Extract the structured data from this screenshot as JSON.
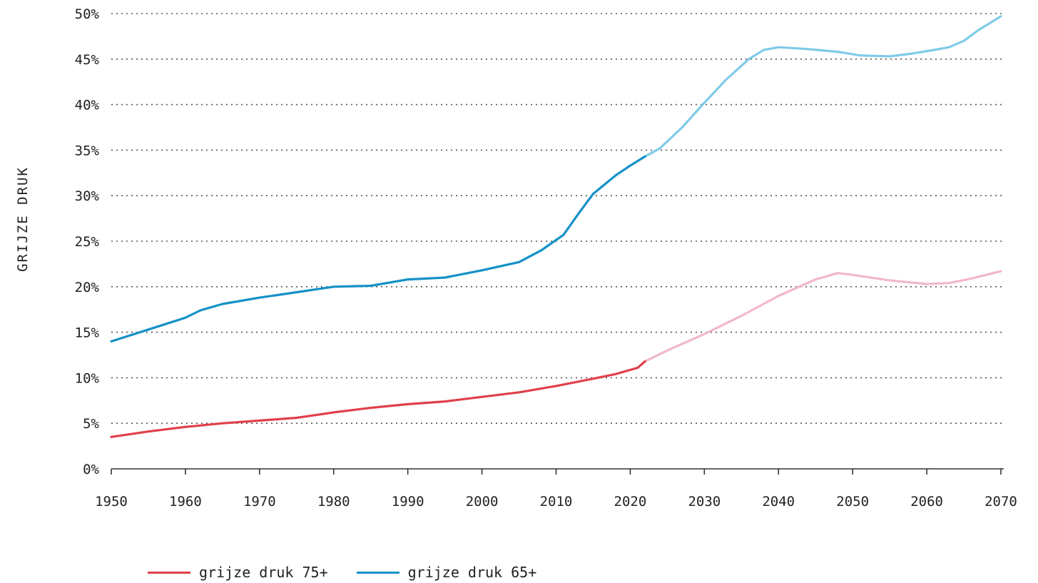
{
  "chart_data": {
    "type": "line",
    "ylabel": "GRIJZE DRUK",
    "xlim": [
      1950,
      2070
    ],
    "ylim": [
      0,
      50
    ],
    "grid": true,
    "legend_position": "bottom-left",
    "x_ticks": [
      1950,
      1960,
      1970,
      1980,
      1990,
      2000,
      2010,
      2020,
      2030,
      2040,
      2050,
      2060,
      2070
    ],
    "x_tick_labels": [
      "1950",
      "1960",
      "1970",
      "1980",
      "1990",
      "2000",
      "2010",
      "2020",
      "2030",
      "2040",
      "2050",
      "2060",
      "2070"
    ],
    "y_ticks": [
      0,
      5,
      10,
      15,
      20,
      25,
      30,
      35,
      40,
      45,
      50
    ],
    "y_tick_labels": [
      "0%",
      "5%",
      "10%",
      "15%",
      "20%",
      "25%",
      "30%",
      "35%",
      "40%",
      "45%",
      "50%"
    ],
    "series": [
      {
        "name": "grijze druk 75+",
        "color": "#e0404a",
        "projection_color": "#f2b8c6",
        "projection_start": 2022,
        "points": [
          [
            1950,
            3.5
          ],
          [
            1955,
            4.1
          ],
          [
            1960,
            4.6
          ],
          [
            1965,
            5.0
          ],
          [
            1970,
            5.3
          ],
          [
            1975,
            5.6
          ],
          [
            1980,
            6.2
          ],
          [
            1985,
            6.7
          ],
          [
            1990,
            7.1
          ],
          [
            1995,
            7.4
          ],
          [
            2000,
            7.9
          ],
          [
            2005,
            8.4
          ],
          [
            2010,
            9.1
          ],
          [
            2015,
            9.9
          ],
          [
            2018,
            10.4
          ],
          [
            2021,
            11.1
          ],
          [
            2022,
            11.8
          ],
          [
            2025,
            13.0
          ],
          [
            2030,
            14.8
          ],
          [
            2035,
            16.8
          ],
          [
            2040,
            19.0
          ],
          [
            2045,
            20.8
          ],
          [
            2048,
            21.5
          ],
          [
            2050,
            21.3
          ],
          [
            2055,
            20.7
          ],
          [
            2060,
            20.3
          ],
          [
            2063,
            20.4
          ],
          [
            2066,
            20.9
          ],
          [
            2070,
            21.7
          ]
        ]
      },
      {
        "name": "grijze druk 65+",
        "color": "#1591c7",
        "projection_color": "#7fcbe8",
        "projection_start": 2022,
        "points": [
          [
            1950,
            14.0
          ],
          [
            1955,
            15.3
          ],
          [
            1960,
            16.6
          ],
          [
            1962,
            17.4
          ],
          [
            1965,
            18.1
          ],
          [
            1970,
            18.8
          ],
          [
            1975,
            19.4
          ],
          [
            1980,
            20.0
          ],
          [
            1985,
            20.1
          ],
          [
            1990,
            20.8
          ],
          [
            1995,
            21.0
          ],
          [
            2000,
            21.8
          ],
          [
            2005,
            22.7
          ],
          [
            2008,
            24.0
          ],
          [
            2011,
            25.7
          ],
          [
            2013,
            28.0
          ],
          [
            2015,
            30.2
          ],
          [
            2018,
            32.2
          ],
          [
            2020,
            33.3
          ],
          [
            2022,
            34.3
          ],
          [
            2024,
            35.2
          ],
          [
            2027,
            37.5
          ],
          [
            2030,
            40.2
          ],
          [
            2033,
            42.8
          ],
          [
            2036,
            45.0
          ],
          [
            2038,
            46.0
          ],
          [
            2040,
            46.3
          ],
          [
            2044,
            46.1
          ],
          [
            2048,
            45.8
          ],
          [
            2051,
            45.4
          ],
          [
            2055,
            45.3
          ],
          [
            2058,
            45.6
          ],
          [
            2061,
            46.0
          ],
          [
            2063,
            46.3
          ],
          [
            2065,
            47.0
          ],
          [
            2067,
            48.2
          ],
          [
            2070,
            49.7
          ]
        ]
      }
    ]
  }
}
